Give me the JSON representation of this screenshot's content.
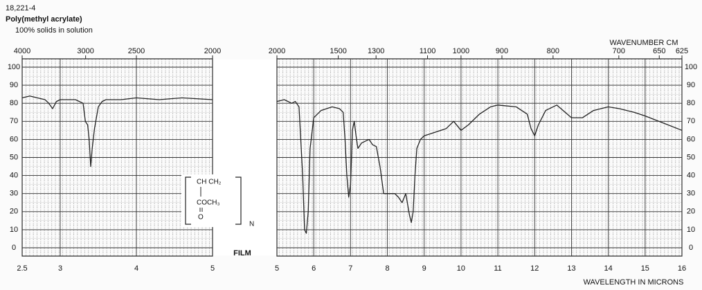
{
  "header": {
    "id": "18,221-4",
    "title": "Poly(methyl acrylate)",
    "subtitle": "100% solids in solution"
  },
  "structure": {
    "top": "CH CH₂",
    "middle": "COCH₃",
    "bottom": "O",
    "repeat": "N"
  },
  "chart_data": [
    {
      "type": "line",
      "color": "#222",
      "annotation": "FILM",
      "x": [
        2.5,
        2.6,
        2.7,
        2.8,
        2.85,
        2.9,
        2.95,
        3.0,
        3.1,
        3.2,
        3.3,
        3.33,
        3.36,
        3.38,
        3.4,
        3.42,
        3.45,
        3.5,
        3.55,
        3.6,
        3.8,
        4.0,
        4.3,
        4.6,
        5.0
      ],
      "values": [
        83,
        84,
        83,
        82,
        80,
        77,
        81,
        82,
        82,
        82,
        80,
        70,
        68,
        60,
        45,
        55,
        66,
        78,
        81,
        82,
        82,
        83,
        82,
        83,
        82
      ],
      "xlim": [
        2.5,
        5
      ],
      "xticks": [
        2.5,
        3,
        4,
        5
      ],
      "x2ticks": [
        4000,
        3000,
        2500,
        2000
      ],
      "ylim": [
        0,
        100
      ],
      "yticks": [
        0,
        10,
        20,
        30,
        40,
        50,
        60,
        70,
        80,
        90,
        100
      ],
      "grid": true
    },
    {
      "type": "line",
      "color": "#222",
      "x2label": "WAVENUMBER CM",
      "xlabel": "WAVELENGTH IN MICRONS",
      "x": [
        5.0,
        5.2,
        5.4,
        5.5,
        5.6,
        5.7,
        5.75,
        5.8,
        5.85,
        5.9,
        6.0,
        6.2,
        6.5,
        6.7,
        6.8,
        6.85,
        6.9,
        6.95,
        7.0,
        7.05,
        7.1,
        7.15,
        7.2,
        7.3,
        7.5,
        7.6,
        7.7,
        7.8,
        7.9,
        8.0,
        8.2,
        8.3,
        8.4,
        8.5,
        8.6,
        8.65,
        8.7,
        8.75,
        8.8,
        8.9,
        9.0,
        9.3,
        9.6,
        9.8,
        10.0,
        10.2,
        10.5,
        10.8,
        11.0,
        11.5,
        11.8,
        11.9,
        12.0,
        12.1,
        12.3,
        12.6,
        13.0,
        13.3,
        13.6,
        14.0,
        14.3,
        14.7,
        15.0,
        15.5,
        16.0
      ],
      "values": [
        81,
        82,
        80,
        81,
        78,
        40,
        10,
        8,
        20,
        55,
        72,
        76,
        78,
        77,
        75,
        60,
        40,
        28,
        35,
        65,
        70,
        62,
        55,
        58,
        60,
        57,
        56,
        45,
        30,
        30,
        30,
        28,
        25,
        30,
        18,
        14,
        20,
        40,
        55,
        60,
        62,
        64,
        66,
        70,
        65,
        68,
        74,
        78,
        79,
        78,
        74,
        66,
        62,
        68,
        76,
        79,
        72,
        72,
        76,
        78,
        77,
        75,
        73,
        69,
        65
      ],
      "xlim": [
        5,
        16
      ],
      "xticks": [
        5,
        6,
        7,
        8,
        9,
        10,
        11,
        12,
        13,
        14,
        15,
        16
      ],
      "x2ticks": [
        2000,
        1500,
        1300,
        1100,
        1000,
        900,
        800,
        700,
        650,
        625
      ],
      "ylim": [
        0,
        100
      ],
      "yticks": [
        0,
        10,
        20,
        30,
        40,
        50,
        60,
        70,
        80,
        90,
        100
      ],
      "grid": true
    }
  ]
}
